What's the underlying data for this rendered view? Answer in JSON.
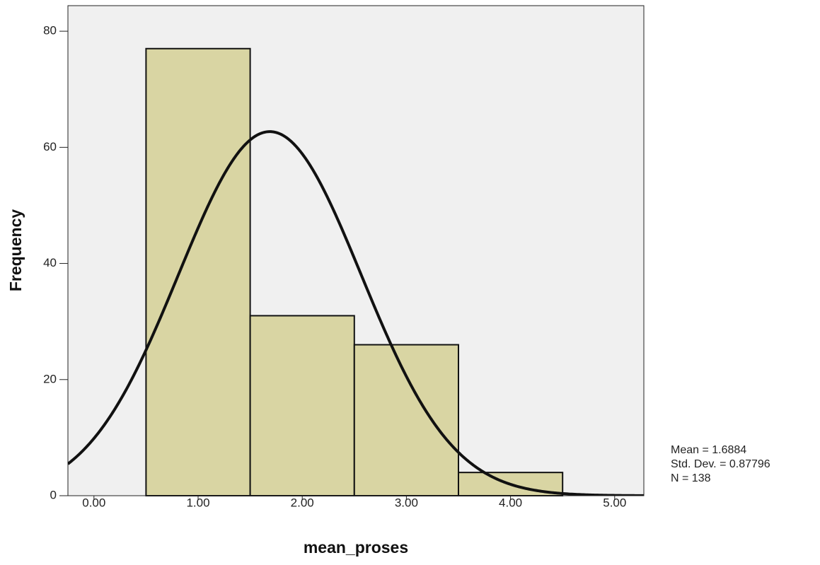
{
  "chart_data": {
    "type": "histogram",
    "x_label": "mean_proses",
    "y_label": "Frequency",
    "bins": [
      0.5,
      1.5,
      2.5,
      3.5,
      4.5
    ],
    "counts": [
      77,
      31,
      26,
      4
    ],
    "color": "#d9d5a3",
    "xlim": [
      -0.25,
      5.28
    ],
    "ylim": [
      0,
      84.4
    ],
    "xticks": [
      {
        "value": 0,
        "label": "0.00"
      },
      {
        "value": 1,
        "label": "1.00"
      },
      {
        "value": 2,
        "label": "2.00"
      },
      {
        "value": 3,
        "label": "3.00"
      },
      {
        "value": 4,
        "label": "4.00"
      },
      {
        "value": 5,
        "label": "5.00"
      }
    ],
    "yticks": [
      0,
      20,
      40,
      60,
      80
    ],
    "normal_curve": {
      "mean": {
        "value": 1.6884,
        "label": "Mean = 1.6884"
      },
      "sd": {
        "value": 0.87796,
        "label": "Std. Dev. = 0.87796"
      },
      "n": {
        "value": 138,
        "label": "N = 138"
      }
    }
  }
}
